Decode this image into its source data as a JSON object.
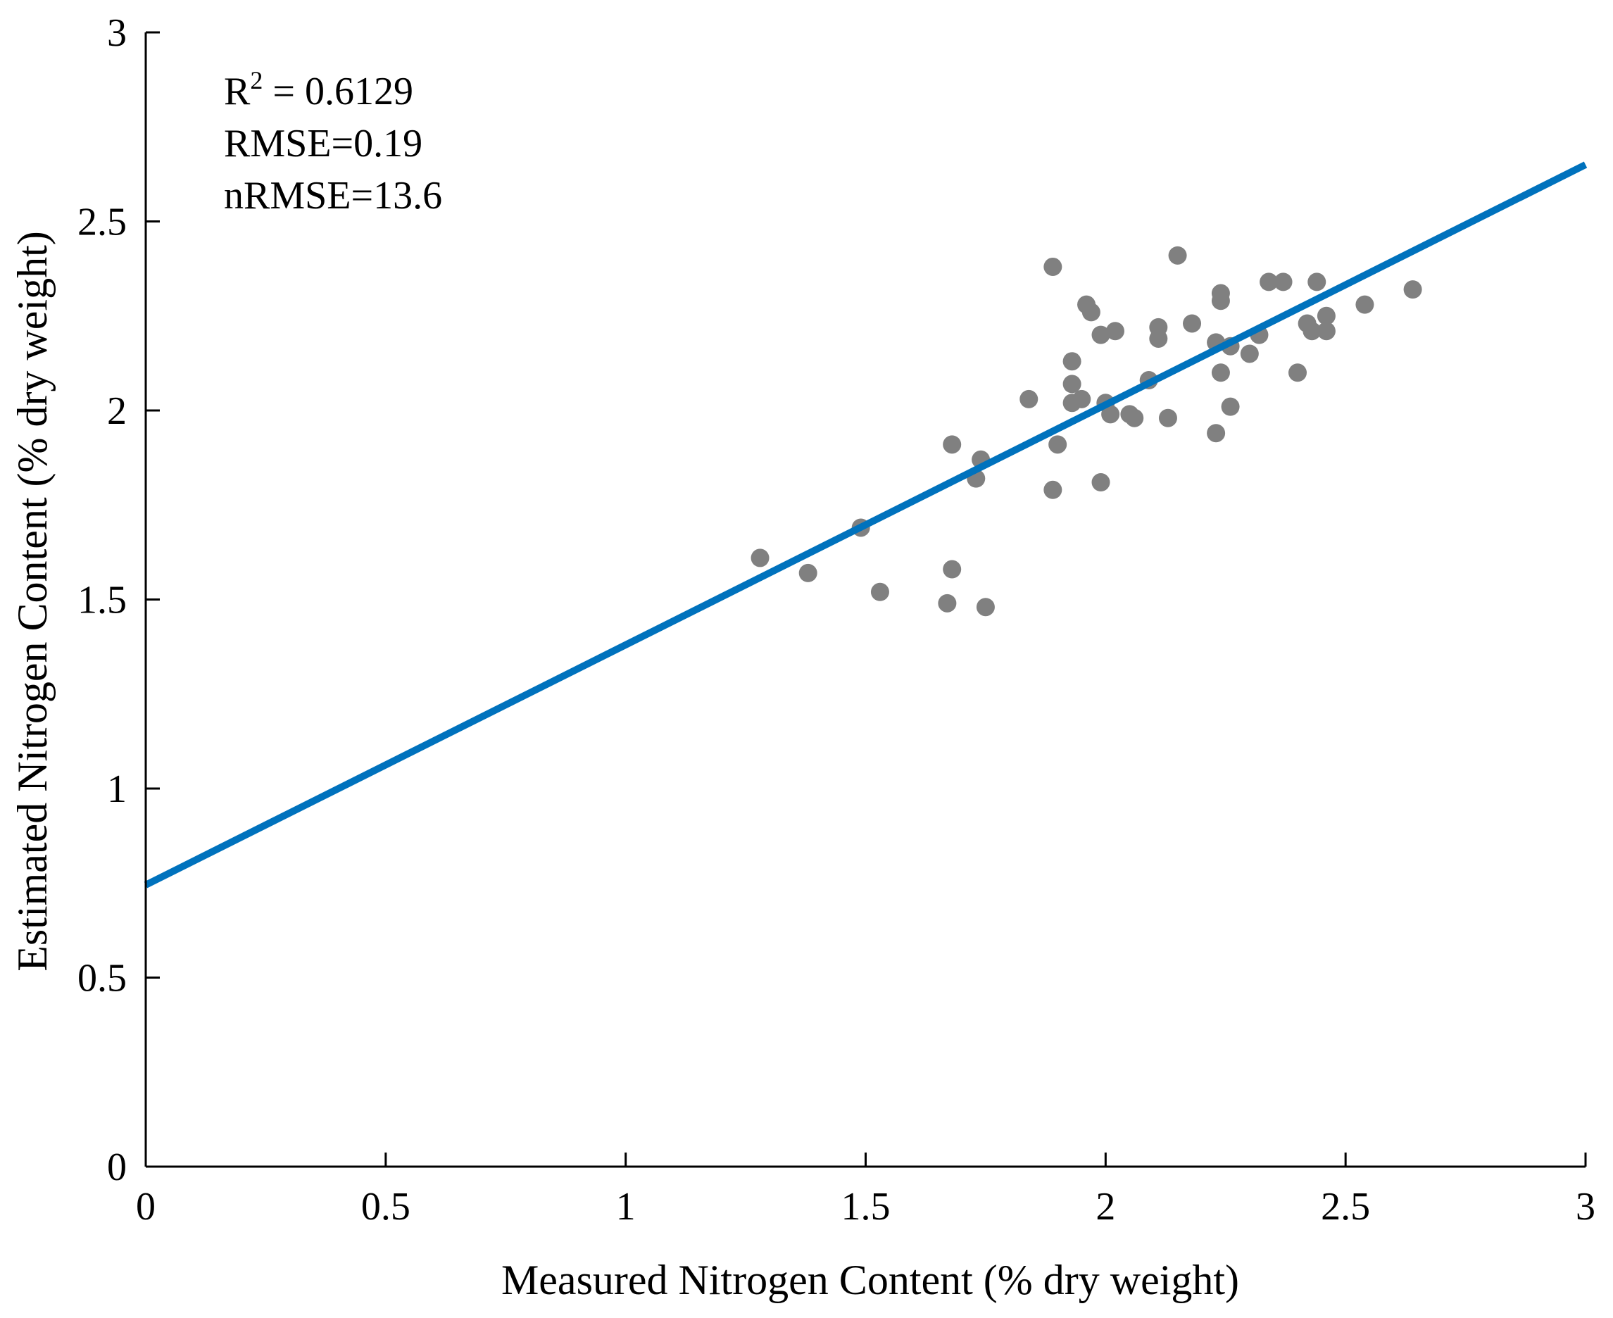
{
  "chart_data": {
    "type": "scatter",
    "title": "",
    "xlabel": "Measured Nitrogen Content (% dry weight)",
    "ylabel": "Estimated Nitrogen Content (% dry weight)",
    "xlim": [
      0,
      3
    ],
    "ylim": [
      0,
      3
    ],
    "xticks": [
      "0",
      "0.5",
      "1",
      "1.5",
      "2",
      "2.5",
      "3"
    ],
    "yticks": [
      "0",
      "0.5",
      "1",
      "1.5",
      "2",
      "2.5",
      "3"
    ],
    "grid": false,
    "colors": {
      "points": "#808080",
      "fit_line": "#0072BD",
      "axes": "#000000"
    },
    "annotations": {
      "r2_prefix": "R",
      "r2_exp": "2",
      "r2_value": " = 0.6129",
      "rmse": "RMSE=0.19",
      "nrmse": "nRMSE=13.6"
    },
    "fit_line": {
      "x": [
        0,
        3
      ],
      "y": [
        0.745,
        2.65
      ]
    },
    "points": [
      {
        "x": 1.28,
        "y": 1.61
      },
      {
        "x": 1.38,
        "y": 1.57
      },
      {
        "x": 1.49,
        "y": 1.69
      },
      {
        "x": 1.53,
        "y": 1.52
      },
      {
        "x": 1.67,
        "y": 1.49
      },
      {
        "x": 1.68,
        "y": 1.58
      },
      {
        "x": 1.68,
        "y": 1.91
      },
      {
        "x": 1.73,
        "y": 1.82
      },
      {
        "x": 1.74,
        "y": 1.87
      },
      {
        "x": 1.75,
        "y": 1.48
      },
      {
        "x": 1.84,
        "y": 2.03
      },
      {
        "x": 1.89,
        "y": 1.79
      },
      {
        "x": 1.89,
        "y": 2.38
      },
      {
        "x": 1.9,
        "y": 1.91
      },
      {
        "x": 1.93,
        "y": 2.13
      },
      {
        "x": 1.93,
        "y": 2.07
      },
      {
        "x": 1.93,
        "y": 2.02
      },
      {
        "x": 1.95,
        "y": 2.03
      },
      {
        "x": 1.96,
        "y": 2.28
      },
      {
        "x": 1.97,
        "y": 2.26
      },
      {
        "x": 1.99,
        "y": 2.2
      },
      {
        "x": 1.99,
        "y": 1.81
      },
      {
        "x": 2.0,
        "y": 2.02
      },
      {
        "x": 2.01,
        "y": 1.99
      },
      {
        "x": 2.02,
        "y": 2.21
      },
      {
        "x": 2.05,
        "y": 1.99
      },
      {
        "x": 2.06,
        "y": 1.98
      },
      {
        "x": 2.09,
        "y": 2.08
      },
      {
        "x": 2.11,
        "y": 2.22
      },
      {
        "x": 2.11,
        "y": 2.19
      },
      {
        "x": 2.13,
        "y": 1.98
      },
      {
        "x": 2.15,
        "y": 2.41
      },
      {
        "x": 2.18,
        "y": 2.23
      },
      {
        "x": 2.23,
        "y": 2.18
      },
      {
        "x": 2.23,
        "y": 1.94
      },
      {
        "x": 2.24,
        "y": 2.31
      },
      {
        "x": 2.24,
        "y": 2.29
      },
      {
        "x": 2.24,
        "y": 2.1
      },
      {
        "x": 2.26,
        "y": 2.17
      },
      {
        "x": 2.26,
        "y": 2.01
      },
      {
        "x": 2.3,
        "y": 2.15
      },
      {
        "x": 2.32,
        "y": 2.2
      },
      {
        "x": 2.34,
        "y": 2.34
      },
      {
        "x": 2.37,
        "y": 2.34
      },
      {
        "x": 2.4,
        "y": 2.1
      },
      {
        "x": 2.42,
        "y": 2.23
      },
      {
        "x": 2.43,
        "y": 2.21
      },
      {
        "x": 2.44,
        "y": 2.34
      },
      {
        "x": 2.46,
        "y": 2.25
      },
      {
        "x": 2.46,
        "y": 2.21
      },
      {
        "x": 2.54,
        "y": 2.28
      },
      {
        "x": 2.64,
        "y": 2.32
      }
    ]
  }
}
